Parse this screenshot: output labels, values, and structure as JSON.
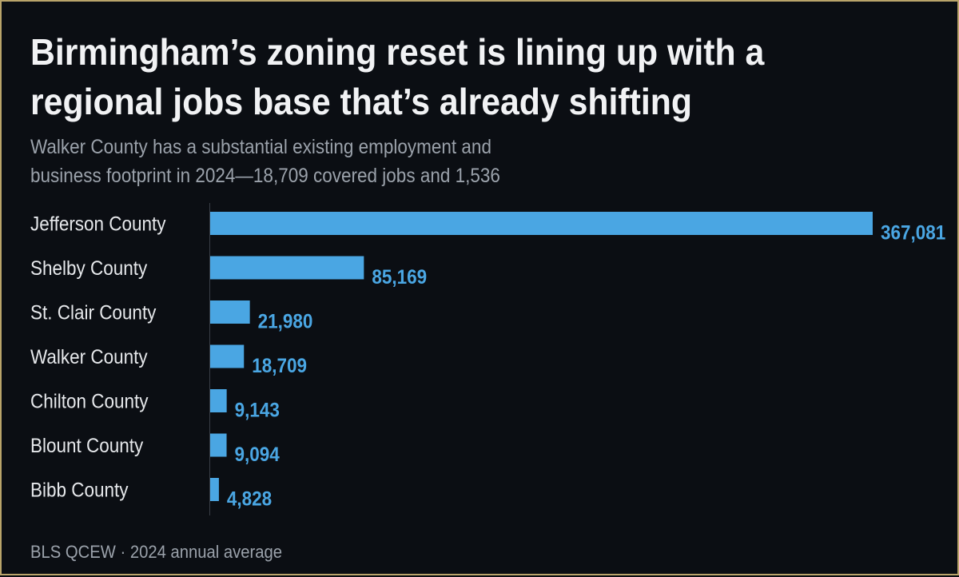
{
  "title": "Birmingham’s zoning reset is lining up with a regional jobs base that’s already shifting",
  "subtitle": "Walker County has a substantial existing employment and business footprint in 2024—18,709 covered jobs and 1,536",
  "source": "BLS QCEW · 2024 annual average",
  "colors": {
    "background": "#0b0e13",
    "border": "#b9a46a",
    "bar": "#4aa6e3",
    "axis": "#3a3f47",
    "label": "#e6e8eb",
    "muted": "#9ba2ab"
  },
  "chart_data": {
    "type": "bar",
    "orientation": "horizontal",
    "title": "Birmingham’s zoning reset is lining up with a regional jobs base that’s already shifting",
    "subtitle": "Walker County has a substantial existing employment and business footprint in 2024—18,709 covered jobs and 1,536",
    "categories": [
      "Jefferson County",
      "Shelby County",
      "St. Clair County",
      "Walker County",
      "Chilton County",
      "Blount County",
      "Bibb County"
    ],
    "values": [
      367081,
      85169,
      21980,
      18709,
      9143,
      9094,
      4828
    ],
    "value_labels": [
      "367,081",
      "85,169",
      "21,980",
      "18,709",
      "9,143",
      "9,094",
      "4,828"
    ],
    "xlim": [
      0,
      367081
    ],
    "grid": false,
    "legend": "none"
  }
}
